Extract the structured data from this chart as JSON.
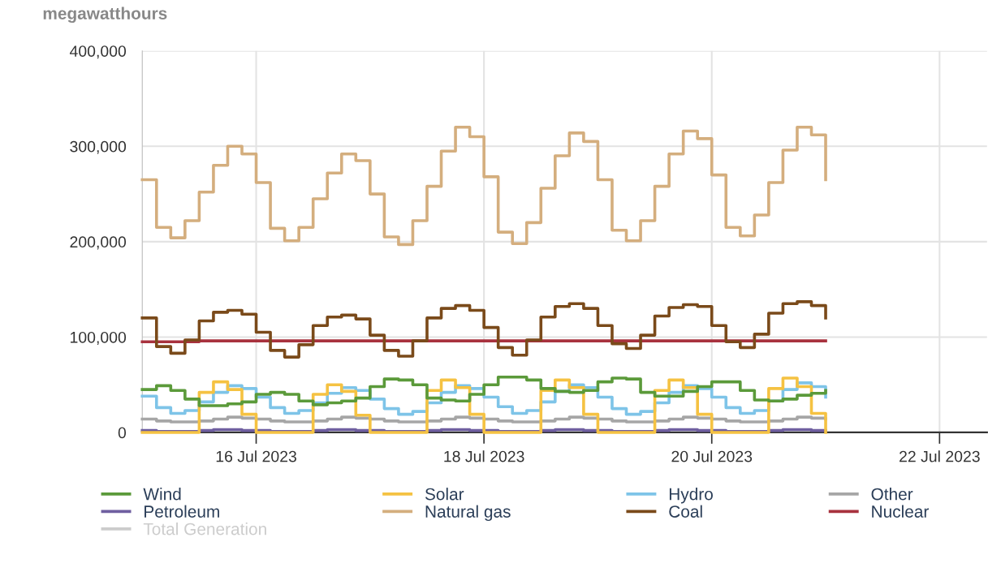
{
  "chart_data": {
    "type": "step",
    "ylabel": "megawatthours",
    "x": [
      "2023-07-15T00:00",
      "2023-07-15T03:00",
      "2023-07-15T06:00",
      "2023-07-15T09:00",
      "2023-07-15T12:00",
      "2023-07-15T15:00",
      "2023-07-15T18:00",
      "2023-07-15T21:00",
      "2023-07-16T00:00",
      "2023-07-16T03:00",
      "2023-07-16T06:00",
      "2023-07-16T09:00",
      "2023-07-16T12:00",
      "2023-07-16T15:00",
      "2023-07-16T18:00",
      "2023-07-16T21:00",
      "2023-07-17T00:00",
      "2023-07-17T03:00",
      "2023-07-17T06:00",
      "2023-07-17T09:00",
      "2023-07-17T12:00",
      "2023-07-17T15:00",
      "2023-07-17T18:00",
      "2023-07-17T21:00",
      "2023-07-18T00:00",
      "2023-07-18T03:00",
      "2023-07-18T06:00",
      "2023-07-18T09:00",
      "2023-07-18T12:00",
      "2023-07-18T15:00",
      "2023-07-18T18:00",
      "2023-07-18T21:00",
      "2023-07-19T00:00",
      "2023-07-19T03:00",
      "2023-07-19T06:00",
      "2023-07-19T09:00",
      "2023-07-19T12:00",
      "2023-07-19T15:00",
      "2023-07-19T18:00",
      "2023-07-19T21:00",
      "2023-07-20T00:00",
      "2023-07-20T03:00",
      "2023-07-20T06:00",
      "2023-07-20T09:00",
      "2023-07-20T12:00",
      "2023-07-20T15:00",
      "2023-07-20T18:00",
      "2023-07-20T21:00",
      "2023-07-21T00:00"
    ],
    "series": [
      {
        "name": "Wind",
        "color": "#5b9a3a",
        "values": [
          45000,
          49000,
          44000,
          35000,
          28000,
          28000,
          30000,
          32000,
          40000,
          42000,
          40000,
          33000,
          29000,
          31000,
          33000,
          36000,
          48000,
          56000,
          55000,
          50000,
          36000,
          34000,
          33000,
          40000,
          50000,
          58000,
          58000,
          55000,
          46000,
          43000,
          42000,
          44000,
          53000,
          57000,
          56000,
          42000,
          38000,
          38000,
          43000,
          48000,
          53000,
          53000,
          44000,
          34000,
          33000,
          35000,
          39000,
          41000,
          44000
        ]
      },
      {
        "name": "Solar",
        "color": "#f5c242",
        "values": [
          0,
          0,
          0,
          0,
          42000,
          53000,
          45000,
          19000,
          0,
          0,
          0,
          0,
          40000,
          50000,
          43000,
          18000,
          0,
          0,
          0,
          0,
          44000,
          55000,
          47000,
          19000,
          0,
          0,
          0,
          0,
          44000,
          55000,
          47000,
          19000,
          0,
          0,
          0,
          0,
          44000,
          55000,
          47000,
          19000,
          0,
          0,
          0,
          0,
          46000,
          57000,
          48000,
          20000,
          0
        ]
      },
      {
        "name": "Hydro",
        "color": "#7ec4e8",
        "values": [
          38000,
          26000,
          20000,
          23000,
          32000,
          42000,
          49000,
          46000,
          37000,
          26000,
          20000,
          23000,
          31000,
          41000,
          47000,
          44000,
          35000,
          25000,
          19000,
          22000,
          31000,
          42000,
          49000,
          46000,
          37000,
          27000,
          20000,
          23000,
          32000,
          43000,
          50000,
          47000,
          37000,
          25000,
          19000,
          22000,
          31000,
          42000,
          49000,
          46000,
          37000,
          26000,
          20000,
          23000,
          33000,
          45000,
          52000,
          48000,
          37000
        ]
      },
      {
        "name": "Other",
        "color": "#a6a6a6",
        "values": [
          14000,
          12000,
          11000,
          11000,
          12000,
          14000,
          16000,
          15000,
          14000,
          12000,
          11000,
          11000,
          12000,
          14000,
          16000,
          15000,
          14000,
          12000,
          11000,
          11000,
          12000,
          14000,
          16000,
          15000,
          14000,
          12000,
          11000,
          11000,
          12000,
          14000,
          16000,
          15000,
          14000,
          12000,
          11000,
          11000,
          12000,
          14000,
          16000,
          15000,
          14000,
          12000,
          11000,
          11000,
          12000,
          14000,
          16000,
          15000,
          14000
        ]
      },
      {
        "name": "Petroleum",
        "color": "#6f5fa0",
        "values": [
          2000,
          1000,
          1000,
          1000,
          2000,
          3000,
          3000,
          2000,
          2000,
          1000,
          1000,
          1000,
          2000,
          3000,
          3000,
          2000,
          2000,
          1000,
          1000,
          1000,
          2000,
          3000,
          3000,
          2000,
          2000,
          1000,
          1000,
          1000,
          2000,
          3000,
          3000,
          2000,
          2000,
          1000,
          1000,
          1000,
          2000,
          3000,
          3000,
          2000,
          2000,
          1000,
          1000,
          1000,
          2000,
          3000,
          3000,
          2000,
          2000
        ]
      },
      {
        "name": "Natural gas",
        "color": "#d4ae7e",
        "values": [
          265000,
          215000,
          204000,
          222000,
          252000,
          280000,
          300000,
          292000,
          262000,
          214000,
          201000,
          215000,
          245000,
          272000,
          292000,
          285000,
          250000,
          205000,
          197000,
          222000,
          258000,
          295000,
          320000,
          310000,
          268000,
          210000,
          198000,
          220000,
          256000,
          290000,
          314000,
          305000,
          265000,
          212000,
          201000,
          222000,
          258000,
          292000,
          316000,
          308000,
          270000,
          215000,
          206000,
          228000,
          262000,
          296000,
          320000,
          312000,
          265000
        ]
      },
      {
        "name": "Coal",
        "color": "#7a4a1a",
        "values": [
          120000,
          90000,
          83000,
          97000,
          117000,
          126000,
          128000,
          124000,
          105000,
          86000,
          79000,
          92000,
          112000,
          121000,
          123000,
          119000,
          102000,
          86000,
          80000,
          96000,
          120000,
          130000,
          133000,
          128000,
          110000,
          89000,
          81000,
          97000,
          121000,
          132000,
          135000,
          130000,
          112000,
          93000,
          88000,
          102000,
          122000,
          131000,
          134000,
          132000,
          112000,
          95000,
          89000,
          103000,
          125000,
          135000,
          137000,
          133000,
          120000
        ]
      },
      {
        "name": "Nuclear",
        "color": "#a8323e",
        "values": [
          95000,
          95000,
          95000,
          95000,
          96000,
          96000,
          96000,
          96000,
          96000,
          96000,
          96000,
          96000,
          96000,
          96000,
          96000,
          96000,
          96000,
          96000,
          96000,
          96000,
          96000,
          96000,
          96000,
          96000,
          96000,
          96000,
          96000,
          96000,
          96000,
          96000,
          96000,
          96000,
          96000,
          96000,
          96000,
          96000,
          96000,
          96000,
          96000,
          96000,
          96000,
          96000,
          96000,
          96000,
          96000,
          96000,
          96000,
          96000,
          96000
        ]
      },
      {
        "name": "Total Generation",
        "color": "#cccccc",
        "values": [
          null,
          null,
          null,
          null,
          null,
          null,
          null,
          null,
          null,
          null,
          null,
          null,
          null,
          null,
          null,
          null,
          null,
          null,
          null,
          null,
          null,
          null,
          null,
          null,
          null,
          null,
          null,
          null,
          null,
          null,
          null,
          null,
          null,
          null,
          null,
          null,
          null,
          null,
          null,
          null,
          null,
          null,
          null,
          null,
          null,
          null,
          null,
          null,
          null
        ]
      }
    ],
    "xlim": [
      "2023-07-15T00:00",
      "2023-07-22T10:00"
    ],
    "xticks": [
      {
        "value": "2023-07-16",
        "label": "16 Jul 2023"
      },
      {
        "value": "2023-07-18",
        "label": "18 Jul 2023"
      },
      {
        "value": "2023-07-20",
        "label": "20 Jul 2023"
      },
      {
        "value": "2023-07-22",
        "label": "22 Jul 2023"
      }
    ],
    "ylim": [
      0,
      400000
    ],
    "yticks": [
      0,
      {
        "value": 100000,
        "label": "100,000"
      },
      {
        "value": 200000,
        "label": "200,000"
      },
      {
        "value": 300000,
        "label": "300,000"
      },
      {
        "value": 400000,
        "label": "400,000"
      }
    ],
    "grid": true,
    "legend": "bottom",
    "marker": "none",
    "line_style": "solid"
  }
}
